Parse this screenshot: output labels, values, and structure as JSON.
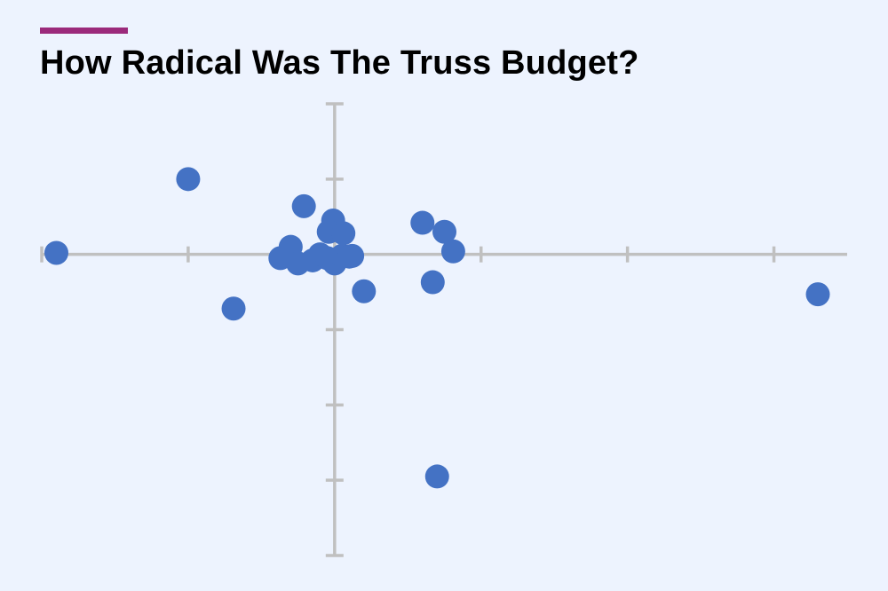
{
  "colors": {
    "background": "#edf3fe",
    "accent": "#9b2a7b",
    "axis": "#c0c0c0",
    "point": "#4472c4"
  },
  "chart_data": {
    "type": "scatter",
    "title": "How Radical Was The Truss Budget?",
    "xlabel": "",
    "ylabel": "",
    "xlim": [
      -2.0,
      3.5
    ],
    "ylim": [
      -4.0,
      2.0
    ],
    "x_ticks": [
      -2,
      -1,
      0,
      1,
      2,
      3
    ],
    "y_ticks": [
      -4,
      -3,
      -2,
      -1,
      0,
      1,
      2
    ],
    "grid": false,
    "legend": "none",
    "points": [
      {
        "x": -1.9,
        "y": 0.02
      },
      {
        "x": -1.0,
        "y": 1.0
      },
      {
        "x": -0.69,
        "y": -0.72
      },
      {
        "x": -0.21,
        "y": 0.64
      },
      {
        "x": -0.3,
        "y": 0.1
      },
      {
        "x": -0.37,
        "y": -0.05
      },
      {
        "x": -0.25,
        "y": -0.12
      },
      {
        "x": -0.15,
        "y": -0.08
      },
      {
        "x": -0.1,
        "y": 0.0
      },
      {
        "x": -0.05,
        "y": -0.05
      },
      {
        "x": 0.0,
        "y": -0.12
      },
      {
        "x": 0.05,
        "y": -0.02
      },
      {
        "x": 0.1,
        "y": -0.03
      },
      {
        "x": 0.12,
        "y": -0.02
      },
      {
        "x": -0.01,
        "y": 0.45
      },
      {
        "x": -0.04,
        "y": 0.3
      },
      {
        "x": 0.06,
        "y": 0.28
      },
      {
        "x": 0.2,
        "y": -0.49
      },
      {
        "x": 0.6,
        "y": 0.42
      },
      {
        "x": 0.75,
        "y": 0.3
      },
      {
        "x": 0.81,
        "y": 0.04
      },
      {
        "x": 0.67,
        "y": -0.37
      },
      {
        "x": 0.7,
        "y": -2.95
      },
      {
        "x": 3.3,
        "y": -0.53
      }
    ]
  }
}
